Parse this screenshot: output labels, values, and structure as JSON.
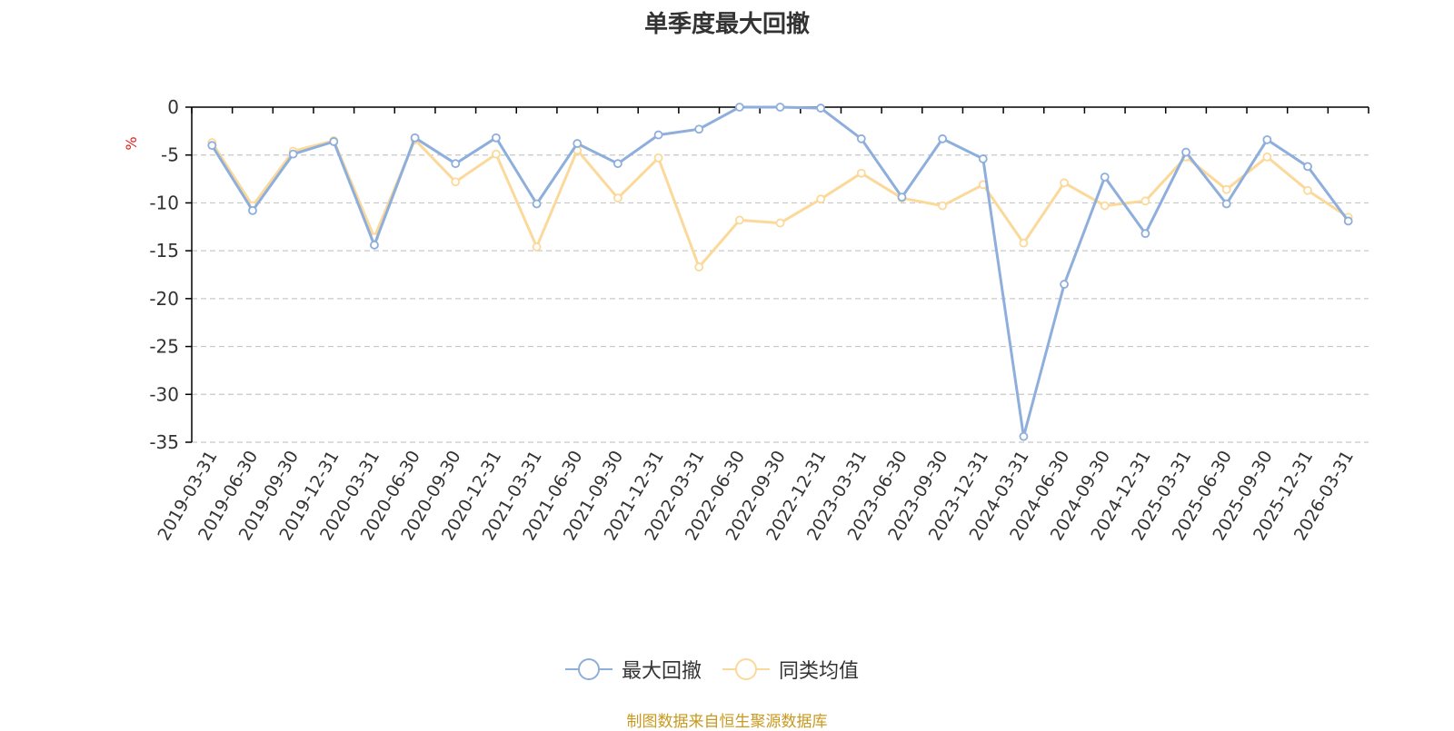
{
  "title": "单季度最大回撤",
  "source_note": "制图数据来自恒生聚源数据库",
  "legend": {
    "series1": "最大回撤",
    "series2": "同类均值"
  },
  "colors": {
    "series1": "#8eaedc",
    "series2": "#fbd99a",
    "axis": "#000000",
    "grid": "#c8c8c8",
    "unit": "#e02020",
    "source": "#c9991f"
  },
  "chart_data": {
    "type": "line",
    "title": "单季度最大回撤",
    "ylabel": "%",
    "ylim": [
      -35,
      0
    ],
    "yticks": [
      0,
      -5,
      -10,
      -15,
      -20,
      -25,
      -30,
      -35
    ],
    "grid": true,
    "legend_position": "bottom",
    "x": [
      "2019-03-31",
      "2019-06-30",
      "2019-09-30",
      "2019-12-31",
      "2020-03-31",
      "2020-06-30",
      "2020-09-30",
      "2020-12-31",
      "2021-03-31",
      "2021-06-30",
      "2021-09-30",
      "2021-12-31",
      "2022-03-31",
      "2022-06-30",
      "2022-09-30",
      "2022-12-31",
      "2023-03-31",
      "2023-06-30",
      "2023-09-30",
      "2023-12-31",
      "2024-03-31",
      "2024-06-30",
      "2024-09-30",
      "2024-12-31",
      "2025-03-31",
      "2025-06-30",
      "2025-09-30",
      "2025-12-31",
      "2026-03-31"
    ],
    "series": [
      {
        "name": "最大回撤",
        "values": [
          -4.0,
          -10.8,
          -4.9,
          -3.6,
          -14.4,
          -3.2,
          -5.9,
          -3.2,
          -10.1,
          -3.8,
          -5.9,
          -2.9,
          -2.3,
          0.0,
          0.0,
          -0.1,
          -3.3,
          -9.4,
          -3.3,
          -5.4,
          -34.4,
          -18.5,
          -7.3,
          -13.2,
          -4.7,
          -10.1,
          -3.4,
          -6.2,
          -11.9
        ]
      },
      {
        "name": "同类均值",
        "values": [
          -3.7,
          -10.3,
          -4.6,
          -3.5,
          -13.6,
          -3.4,
          -7.8,
          -4.9,
          -14.6,
          -4.5,
          -9.5,
          -5.3,
          -16.7,
          -11.8,
          -12.1,
          -9.6,
          -6.9,
          -9.5,
          -10.3,
          -8.1,
          -14.2,
          -7.9,
          -10.3,
          -9.8,
          -5.2,
          -8.6,
          -5.2,
          -8.7,
          -11.5
        ]
      }
    ]
  }
}
